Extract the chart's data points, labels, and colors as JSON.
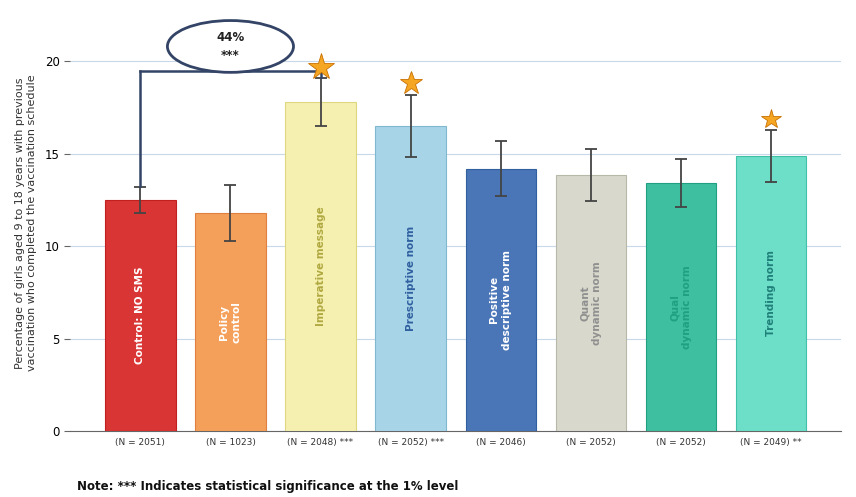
{
  "categories": [
    "Control: NO SMS",
    "Policy\ncontrol",
    "Imperative message",
    "Prescriptive norm",
    "Positive\ndescriptive norm",
    "Quant\ndynamic norm",
    "Qual\ndynamic norm",
    "Trending norm"
  ],
  "values": [
    12.5,
    11.8,
    17.8,
    16.5,
    14.2,
    13.85,
    13.4,
    14.9
  ],
  "errors_upper": [
    0.7,
    1.5,
    1.3,
    1.7,
    1.5,
    1.4,
    1.3,
    1.4
  ],
  "errors_lower": [
    0.7,
    1.5,
    1.3,
    1.7,
    1.5,
    1.4,
    1.3,
    1.4
  ],
  "bar_colors": [
    "#d93535",
    "#f5a05a",
    "#f5f0b0",
    "#a8d4e8",
    "#4a76b8",
    "#d8d8cc",
    "#3dbfa0",
    "#6ddec8"
  ],
  "bar_edge_colors": [
    "#c02020",
    "#e08040",
    "#ddd880",
    "#80b8d0",
    "#3060a0",
    "#b8b8a8",
    "#20a080",
    "#40c0a8"
  ],
  "xlabels": [
    "(N = 2051)",
    "(N = 1023)",
    "(N = 2048) ***",
    "(N = 2052) ***",
    "(N = 2046)",
    "(N = 2052)",
    "(N = 2052)",
    "(N = 2049) **"
  ],
  "ylabel": "Percentage of girls aged 9 to 18 years with previous\nvaccination who completed the vaccination schedule",
  "ylim": [
    0,
    22.5
  ],
  "yticks": [
    0,
    5,
    10,
    15,
    20
  ],
  "annotation_text": "44%\n***",
  "note": "Note: *** Indicates statistical significance at the 1% level",
  "background_color": "#ffffff",
  "grid_color": "#c8d8e8",
  "bracket_color": "#334466",
  "text_colors": [
    "#ffffff",
    "#ffffff",
    "#b0a840",
    "#3060a0",
    "#ffffff",
    "#909090",
    "#20a080",
    "#20807a"
  ],
  "star_indices": [
    2,
    3,
    7
  ],
  "star_color": "#f5a623",
  "star_edge_color": "#c87000",
  "star_sizes": [
    20,
    17,
    15
  ]
}
